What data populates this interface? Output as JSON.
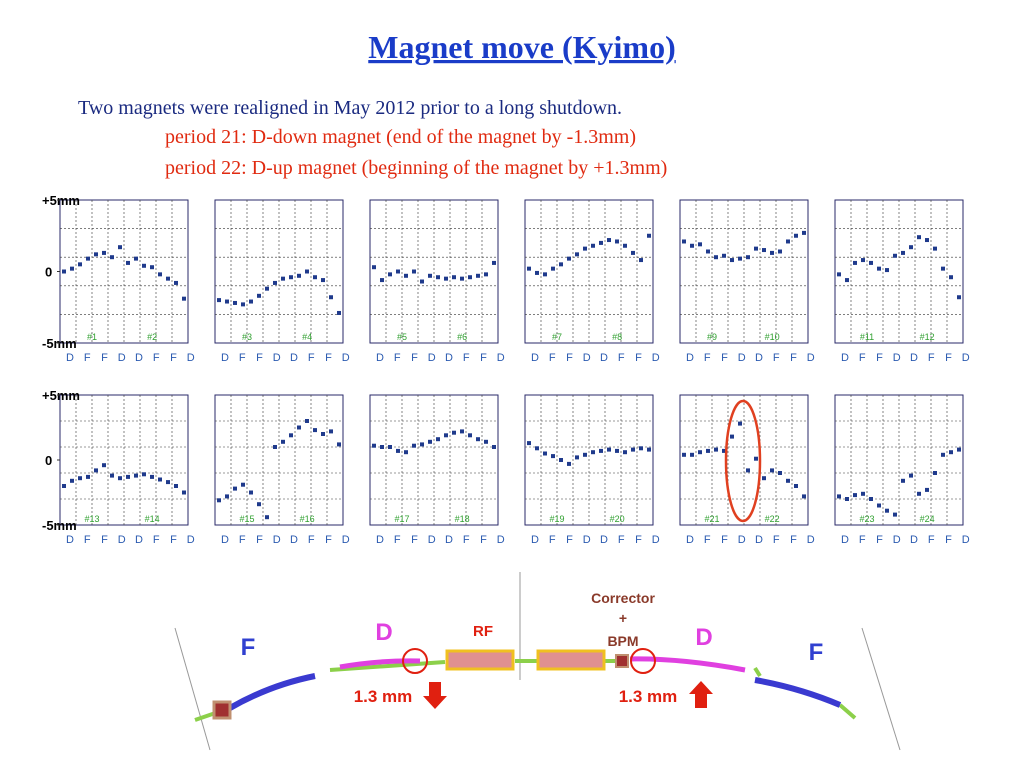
{
  "header": {
    "title": "Magnet move (Kyimo)",
    "lines": [
      "Two magnets were realigned in May 2012 prior to a long shutdown.",
      "period 21:  D-down magnet (end of the magnet by -1.3mm)",
      "period 22:  D-up magnet (beginning of the magnet by +1.3mm)"
    ]
  },
  "chart_data": [
    {
      "type": "scatter",
      "ylim": [
        -5,
        5
      ],
      "yticks": [
        {
          "value": 5,
          "label": "+5mm"
        },
        0,
        {
          "value": -5,
          "label": "-5mm"
        }
      ],
      "sectors": [
        "#1",
        "#2"
      ],
      "x_labels": [
        "D",
        "F",
        "F",
        "D",
        "D",
        "F",
        "F",
        "D"
      ],
      "values": [
        0,
        0.2,
        0.5,
        0.9,
        1.2,
        1.3,
        1.0,
        1.7,
        0.6,
        0.9,
        0.4,
        0.3,
        -0.2,
        -0.5,
        -0.8,
        -1.9
      ]
    },
    {
      "type": "scatter",
      "ylim": [
        -5,
        5
      ],
      "sectors": [
        "#3",
        "#4"
      ],
      "x_labels": [
        "D",
        "F",
        "F",
        "D",
        "D",
        "F",
        "F",
        "D"
      ],
      "values": [
        -2.0,
        -2.1,
        -2.2,
        -2.3,
        -2.1,
        -1.7,
        -1.2,
        -0.8,
        -0.5,
        -0.4,
        -0.3,
        0,
        -0.4,
        -0.6,
        -1.8,
        -2.9
      ]
    },
    {
      "type": "scatter",
      "ylim": [
        -5,
        5
      ],
      "sectors": [
        "#5",
        "#6"
      ],
      "x_labels": [
        "D",
        "F",
        "F",
        "D",
        "D",
        "F",
        "F",
        "D"
      ],
      "values": [
        0.3,
        -0.6,
        -0.2,
        0,
        -0.3,
        0,
        -0.7,
        -0.3,
        -0.4,
        -0.5,
        -0.4,
        -0.5,
        -0.4,
        -0.3,
        -0.2,
        0.6
      ]
    },
    {
      "type": "scatter",
      "ylim": [
        -5,
        5
      ],
      "sectors": [
        "#7",
        "#8"
      ],
      "x_labels": [
        "D",
        "F",
        "F",
        "D",
        "D",
        "F",
        "F",
        "D"
      ],
      "values": [
        0.2,
        -0.1,
        -0.2,
        0.2,
        0.5,
        0.9,
        1.2,
        1.6,
        1.8,
        2.0,
        2.2,
        2.1,
        1.8,
        1.3,
        0.8,
        2.5
      ]
    },
    {
      "type": "scatter",
      "ylim": [
        -5,
        5
      ],
      "sectors": [
        "#9",
        "#10"
      ],
      "x_labels": [
        "D",
        "F",
        "F",
        "D",
        "D",
        "F",
        "F",
        "D"
      ],
      "values": [
        2.1,
        1.8,
        1.9,
        1.4,
        1.0,
        1.1,
        0.8,
        0.9,
        1.0,
        1.6,
        1.5,
        1.3,
        1.4,
        2.1,
        2.5,
        2.7
      ]
    },
    {
      "type": "scatter",
      "ylim": [
        -5,
        5
      ],
      "sectors": [
        "#11",
        "#12"
      ],
      "x_labels": [
        "D",
        "F",
        "F",
        "D",
        "D",
        "F",
        "F",
        "D"
      ],
      "values": [
        -0.2,
        -0.6,
        0.6,
        0.8,
        0.6,
        0.2,
        0.1,
        1.1,
        1.3,
        1.7,
        2.4,
        2.2,
        1.6,
        0.2,
        -0.4,
        -1.8
      ]
    },
    {
      "type": "scatter",
      "ylim": [
        -5,
        5
      ],
      "yticks": [
        {
          "value": 5,
          "label": "+5mm"
        },
        0,
        {
          "value": -5,
          "label": "-5mm"
        }
      ],
      "sectors": [
        "#13",
        "#14"
      ],
      "x_labels": [
        "D",
        "F",
        "F",
        "D",
        "D",
        "F",
        "F",
        "D"
      ],
      "values": [
        -2.0,
        -1.6,
        -1.4,
        -1.3,
        -0.8,
        -0.4,
        -1.2,
        -1.4,
        -1.3,
        -1.2,
        -1.1,
        -1.3,
        -1.5,
        -1.7,
        -2.0,
        -2.5
      ]
    },
    {
      "type": "scatter",
      "ylim": [
        -5,
        5
      ],
      "sectors": [
        "#15",
        "#16"
      ],
      "x_labels": [
        "D",
        "F",
        "F",
        "D",
        "D",
        "F",
        "F",
        "D"
      ],
      "values": [
        -3.1,
        -2.8,
        -2.2,
        -1.9,
        -2.5,
        -3.4,
        -4.4,
        1.0,
        1.4,
        1.9,
        2.5,
        3.0,
        2.3,
        2.0,
        2.2,
        1.2
      ]
    },
    {
      "type": "scatter",
      "ylim": [
        -5,
        5
      ],
      "sectors": [
        "#17",
        "#18"
      ],
      "x_labels": [
        "D",
        "F",
        "F",
        "D",
        "D",
        "F",
        "F",
        "D"
      ],
      "values": [
        1.1,
        1.0,
        1.0,
        0.7,
        0.6,
        1.1,
        1.2,
        1.4,
        1.6,
        1.9,
        2.1,
        2.2,
        1.9,
        1.6,
        1.4,
        1.0
      ]
    },
    {
      "type": "scatter",
      "ylim": [
        -5,
        5
      ],
      "sectors": [
        "#19",
        "#20"
      ],
      "x_labels": [
        "D",
        "F",
        "F",
        "D",
        "D",
        "F",
        "F",
        "D"
      ],
      "values": [
        1.3,
        0.9,
        0.5,
        0.3,
        0.0,
        -0.3,
        0.2,
        0.4,
        0.6,
        0.7,
        0.8,
        0.7,
        0.6,
        0.8,
        0.9,
        0.8
      ]
    },
    {
      "type": "scatter",
      "ylim": [
        -5,
        5
      ],
      "sectors": [
        "#21",
        "#22"
      ],
      "x_labels": [
        "D",
        "F",
        "F",
        "D",
        "D",
        "F",
        "F",
        "D"
      ],
      "values": [
        0.4,
        0.4,
        0.6,
        0.7,
        0.8,
        0.7,
        1.8,
        2.8,
        -0.8,
        0.1,
        -1.4,
        -0.8,
        -1.0,
        -1.6,
        -2.0,
        -2.8
      ]
    },
    {
      "type": "scatter",
      "ylim": [
        -5,
        5
      ],
      "sectors": [
        "#23",
        "#24"
      ],
      "x_labels": [
        "D",
        "F",
        "F",
        "D",
        "D",
        "F",
        "F",
        "D"
      ],
      "values": [
        -2.8,
        -3.0,
        -2.7,
        -2.6,
        -3.0,
        -3.5,
        -3.9,
        -4.2,
        -1.6,
        -1.2,
        -2.6,
        -2.3,
        -1.0,
        0.4,
        0.6,
        0.8
      ]
    }
  ],
  "diagram": {
    "labels": [
      "F",
      "D",
      "RF",
      "Corrector",
      "+",
      "BPM",
      "D",
      "F"
    ],
    "offsets": [
      "1.3 mm",
      "1.3 mm"
    ]
  }
}
